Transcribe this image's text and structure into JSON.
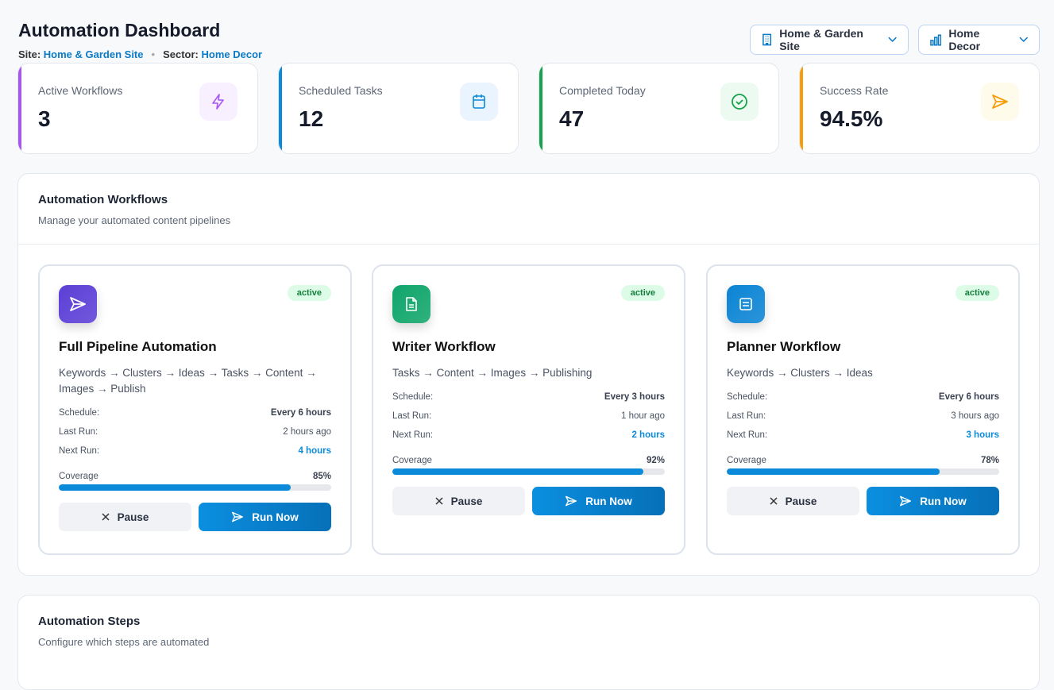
{
  "header": {
    "title": "Automation Dashboard",
    "site_label": "Site:",
    "site_value": "Home & Garden Site",
    "sector_label": "Sector:",
    "sector_value": "Home Decor",
    "separator": "•"
  },
  "selectors": [
    {
      "label": "Home & Garden Site",
      "icon": "building-icon"
    },
    {
      "label": "Home Decor",
      "icon": "bar-chart-icon"
    }
  ],
  "stats": [
    {
      "label": "Active Workflows",
      "value": "3",
      "color": "#a855f7",
      "icon": "lightning-icon"
    },
    {
      "label": "Scheduled Tasks",
      "value": "12",
      "color": "#0b8ad9",
      "icon": "calendar-icon"
    },
    {
      "label": "Completed Today",
      "value": "47",
      "color": "#16a34a",
      "icon": "check-circle-icon"
    },
    {
      "label": "Success Rate",
      "value": "94.5%",
      "color": "#f59e0b",
      "icon": "send-icon"
    }
  ],
  "workflows_panel": {
    "title": "Automation Workflows",
    "subtitle": "Manage your automated content pipelines"
  },
  "workflows": [
    {
      "name": "Full Pipeline Automation",
      "status": "active",
      "desc": "Keywords → Clusters → Ideas → Tasks → Content → Images → Publish",
      "schedule_label": "Schedule:",
      "schedule": "Every 6 hours",
      "last_label": "Last Run:",
      "last": "2 hours ago",
      "next_label": "Next Run:",
      "next": "4 hours",
      "coverage_label": "Coverage",
      "coverage": "85%",
      "coverage_value": 85,
      "pause": "Pause",
      "run": "Run Now",
      "icon": "send-icon",
      "color": "#5b3fd6"
    },
    {
      "name": "Writer Workflow",
      "status": "active",
      "desc": "Tasks → Content → Images → Publishing",
      "schedule_label": "Schedule:",
      "schedule": "Every 3 hours",
      "last_label": "Last Run:",
      "last": "1 hour ago",
      "next_label": "Next Run:",
      "next": "2 hours",
      "coverage_label": "Coverage",
      "coverage": "92%",
      "coverage_value": 92,
      "pause": "Pause",
      "run": "Run Now",
      "icon": "document-icon",
      "color": "#10a56a"
    },
    {
      "name": "Planner Workflow",
      "status": "active",
      "desc": "Keywords → Clusters → Ideas",
      "schedule_label": "Schedule:",
      "schedule": "Every 6 hours",
      "last_label": "Last Run:",
      "last": "3 hours ago",
      "next_label": "Next Run:",
      "next": "3 hours",
      "coverage_label": "Coverage",
      "coverage": "78%",
      "coverage_value": 78,
      "pause": "Pause",
      "run": "Run Now",
      "icon": "list-icon",
      "color": "#0b84d4"
    }
  ],
  "steps_panel": {
    "title": "Automation Steps",
    "subtitle": "Configure which steps are automated"
  }
}
